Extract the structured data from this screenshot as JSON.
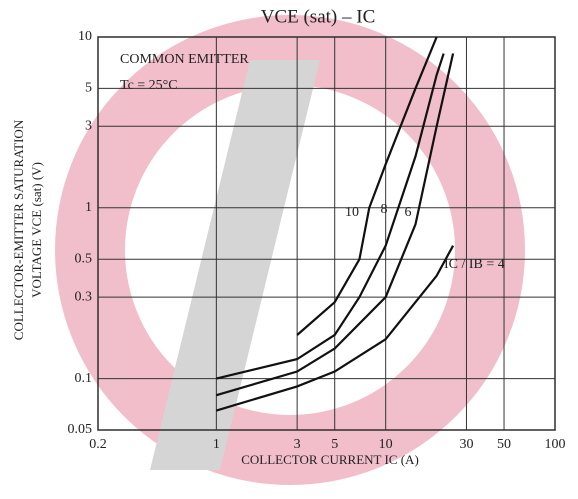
{
  "chart_data": {
    "type": "line",
    "title": "VCE (sat) – IC",
    "x_label": "COLLECTOR CURRENT  IC  (A)",
    "y_label": [
      "COLLECTOR-EMITTER SATURATION",
      "VOLTAGE  VCE (sat)  (V)"
    ],
    "annotations": [
      "COMMON EMITTER",
      "Tc = 25°C"
    ],
    "xlog": true,
    "ylog": true,
    "grid": true,
    "xlim": [
      0.2,
      100
    ],
    "ylim": [
      0.05,
      10
    ],
    "xticks": [
      0.2,
      1,
      3,
      5,
      10,
      30,
      50,
      100
    ],
    "yticks": [
      0.05,
      0.1,
      0.3,
      0.5,
      1,
      3,
      5,
      10
    ],
    "series": [
      {
        "name": "10",
        "color": "#111111",
        "x": [
          3,
          5,
          7,
          8,
          10,
          15,
          20
        ],
        "values": [
          0.18,
          0.28,
          0.5,
          1,
          1.8,
          5,
          10
        ]
      },
      {
        "name": "8",
        "color": "#111111",
        "x": [
          1,
          3,
          5,
          7,
          10,
          15,
          20,
          22
        ],
        "values": [
          0.1,
          0.13,
          0.18,
          0.3,
          0.6,
          2,
          6,
          8
        ]
      },
      {
        "name": "6",
        "color": "#111111",
        "x": [
          1,
          3,
          5,
          10,
          15,
          20,
          25
        ],
        "values": [
          0.08,
          0.11,
          0.15,
          0.3,
          0.8,
          3,
          8
        ]
      },
      {
        "name": "IC / IB = 4",
        "color": "#111111",
        "x": [
          1,
          3,
          5,
          10,
          20,
          25
        ],
        "values": [
          0.065,
          0.09,
          0.11,
          0.17,
          0.4,
          0.6
        ]
      }
    ]
  }
}
